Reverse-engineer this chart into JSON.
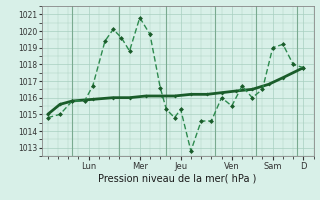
{
  "bg_color": "#cce8dc",
  "plot_bg_color": "#d8f0e8",
  "grid_color": "#a8cfc0",
  "line_color_dark": "#1a5c2a",
  "line_color_light": "#2d8a4e",
  "xlabel": "Pression niveau de la mer( hPa )",
  "ylim": [
    1012.5,
    1021.5
  ],
  "yticks": [
    1013,
    1014,
    1015,
    1016,
    1017,
    1018,
    1019,
    1020,
    1021
  ],
  "xlim": [
    -0.3,
    13.0
  ],
  "day_labels": [
    "Lun",
    "Mer",
    "Jeu",
    "Ven",
    "Sam",
    "D"
  ],
  "day_positions": [
    2.0,
    4.5,
    6.5,
    9.0,
    11.0,
    12.5
  ],
  "day_vlines": [
    1.2,
    3.5,
    5.8,
    8.2,
    10.2,
    12.2
  ],
  "series1_x": [
    0.0,
    0.6,
    1.2,
    1.8,
    2.2,
    2.8,
    3.2,
    3.6,
    4.0,
    4.5,
    5.0,
    5.5,
    5.8,
    6.2,
    6.5,
    7.0,
    7.5,
    8.0,
    8.5,
    9.0,
    9.5,
    10.0,
    10.5,
    11.0,
    11.5,
    12.0,
    12.5
  ],
  "series1_y": [
    1014.8,
    1015.0,
    1015.8,
    1015.8,
    1016.7,
    1019.4,
    1020.1,
    1019.6,
    1018.8,
    1020.8,
    1019.8,
    1016.6,
    1015.3,
    1014.8,
    1015.3,
    1012.8,
    1014.6,
    1014.6,
    1016.0,
    1015.5,
    1016.7,
    1016.0,
    1016.5,
    1019.0,
    1019.2,
    1018.0,
    1017.8
  ],
  "series2_x": [
    0.0,
    0.6,
    1.2,
    2.2,
    3.2,
    4.0,
    4.8,
    5.6,
    6.2,
    7.0,
    7.8,
    8.5,
    9.2,
    10.0,
    10.8,
    11.5,
    12.5
  ],
  "series2_y": [
    1015.0,
    1015.6,
    1015.8,
    1015.9,
    1016.0,
    1016.0,
    1016.1,
    1016.1,
    1016.1,
    1016.2,
    1016.2,
    1016.3,
    1016.4,
    1016.5,
    1016.8,
    1017.2,
    1017.8
  ]
}
